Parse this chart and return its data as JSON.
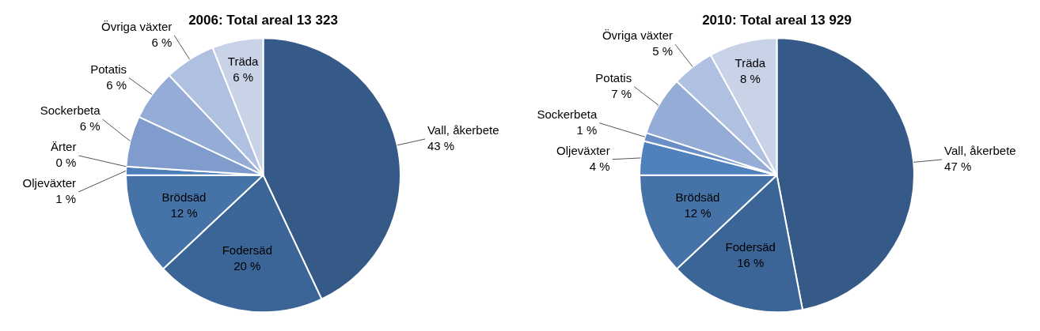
{
  "chart_data": [
    {
      "type": "pie",
      "title": "2006: Total areal 13 323",
      "categories": [
        "Vall, åkerbete",
        "Fodersäd",
        "Brödsäd",
        "Oljeväxter",
        "Ärter",
        "Sockerbeta",
        "Potatis",
        "Övriga växter",
        "Träda"
      ],
      "values": [
        43,
        20,
        12,
        1,
        0,
        6,
        6,
        6,
        6
      ],
      "value_labels": [
        "43 %",
        "20 %",
        "12 %",
        "1 %",
        "0 %",
        "6 %",
        "6 %",
        "6 %",
        "6 %"
      ],
      "colors": [
        "#355a88",
        "#3b6497",
        "#4572a7",
        "#4f7fbb",
        "#6a8fc6",
        "#7f9ccd",
        "#95acd6",
        "#b0c0e0",
        "#c9d3e8"
      ],
      "legend": false
    },
    {
      "type": "pie",
      "title": "2010: Total areal 13 929",
      "categories": [
        "Vall, åkerbete",
        "Fodersäd",
        "Brödsäd",
        "Oljeväxter",
        "Sockerbeta",
        "Potatis",
        "Övriga växter",
        "Träda"
      ],
      "values": [
        47,
        16,
        12,
        4,
        1,
        7,
        5,
        8
      ],
      "value_labels": [
        "47 %",
        "16 %",
        "12 %",
        "4 %",
        "1 %",
        "7 %",
        "5 %",
        "8 %"
      ],
      "colors": [
        "#355a88",
        "#3b6497",
        "#4572a7",
        "#4f81bd",
        "#6a8fc6",
        "#95acd6",
        "#b0c0e0",
        "#c9d3e8"
      ],
      "legend": false
    }
  ]
}
